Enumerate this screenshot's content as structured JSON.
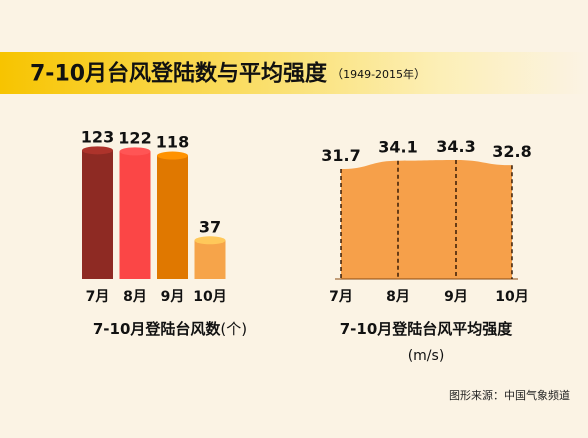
{
  "header": {
    "title": "7-10月台风登陆数与平均强度",
    "subtitle_open": "（",
    "subtitle": "1949-2015年",
    "subtitle_close": "）"
  },
  "chart_data": [
    {
      "type": "bar",
      "title": "7-10月登陆台风数",
      "title_suffix": "(个)",
      "categories": [
        "7月",
        "8月",
        "9月",
        "10月"
      ],
      "values": [
        123,
        122,
        118,
        37
      ],
      "ylim": [
        0,
        130
      ],
      "colors": [
        "#8e2a23",
        "#fb4646",
        "#e07800",
        "#f6a44a"
      ]
    },
    {
      "type": "area",
      "title": "7-10月登陆台风平均强度",
      "ylabel": "(m/s)",
      "categories": [
        "7月",
        "8月",
        "9月",
        "10月"
      ],
      "values": [
        31.7,
        34.1,
        34.3,
        32.8
      ],
      "ylim": [
        0,
        34.3
      ],
      "color": "#f6a04a"
    }
  ],
  "footer": {
    "source": "图形来源：中国气象频道"
  }
}
